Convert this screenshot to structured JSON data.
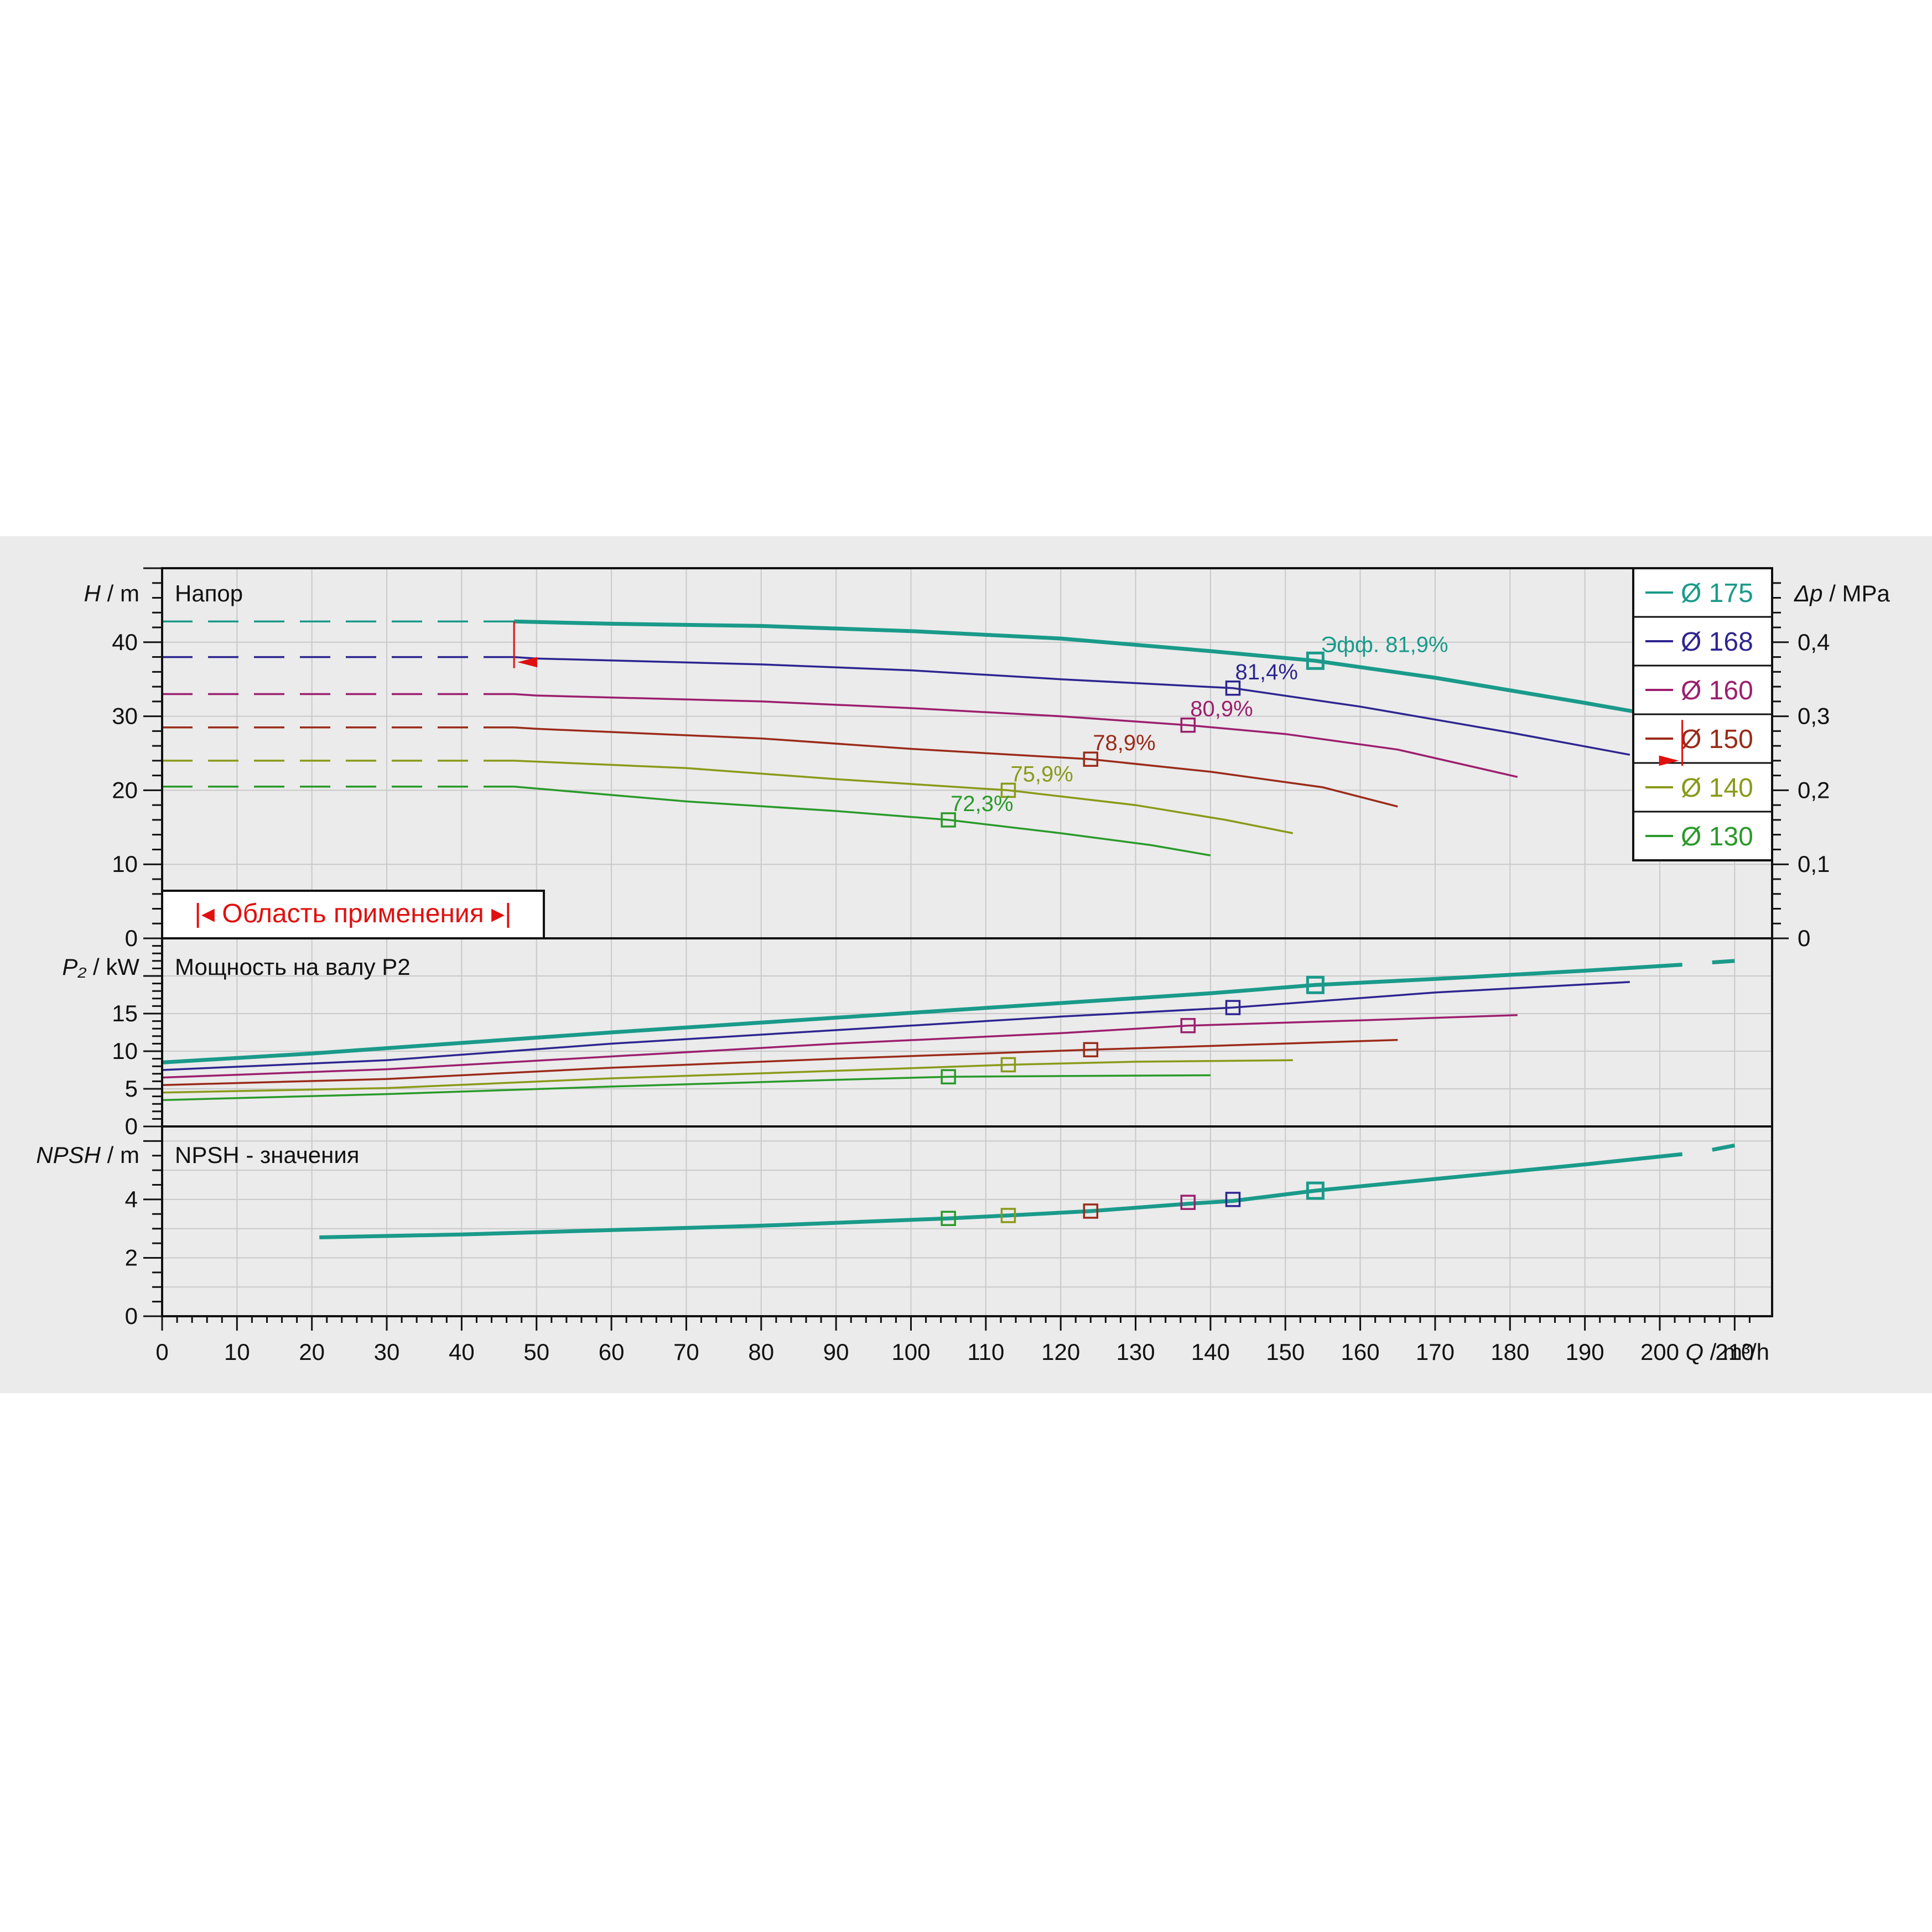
{
  "chart_data": {
    "type": "line",
    "x_axis": {
      "label_symbol": "Q",
      "label_unit": "m³/h",
      "range": [
        0,
        215
      ],
      "ticks": [
        "0",
        "10",
        "20",
        "30",
        "40",
        "50",
        "60",
        "70",
        "80",
        "90",
        "100",
        "110",
        "120",
        "130",
        "140",
        "150",
        "160",
        "170",
        "180",
        "190",
        "200",
        "210"
      ]
    },
    "panels": {
      "head": {
        "title": "Напор",
        "ylabel_symbol": "H",
        "ylabel_unit": "m",
        "ylim": [
          0,
          50
        ],
        "yticks": [
          "0",
          "10",
          "20",
          "30",
          "40"
        ],
        "right_axis": {
          "label_symbol": "Δp",
          "label_unit": "MPa",
          "ticks": [
            "0",
            "0,1",
            "0,2",
            "0,3",
            "0,4"
          ]
        },
        "application_range": {
          "label": "Область применения",
          "q_min": 47,
          "q_max": 203
        }
      },
      "power": {
        "title": "Мощность на валу P2",
        "ylabel_symbol": "P₂",
        "ylabel_unit": "kW",
        "ylim": [
          0,
          25
        ],
        "yticks": [
          "0",
          "5",
          "10",
          "15"
        ]
      },
      "npsh": {
        "title": "NPSH - значения",
        "ylabel_symbol": "NPSH",
        "ylabel_unit": "m",
        "ylim": [
          0,
          6.5
        ],
        "yticks": [
          "0",
          "2",
          "4"
        ]
      }
    },
    "efficiency_prefix": "Эфф.",
    "series": [
      {
        "name": "Ø 175",
        "color": "#1a9a8a",
        "bold": true,
        "head": [
          [
            47,
            42.8
          ],
          [
            60,
            42.5
          ],
          [
            80,
            42.2
          ],
          [
            100,
            41.5
          ],
          [
            120,
            40.5
          ],
          [
            140,
            38.8
          ],
          [
            154,
            37.5
          ],
          [
            170,
            35.2
          ],
          [
            190,
            31.8
          ],
          [
            203,
            29.5
          ]
        ],
        "head_ext": [
          [
            207,
            28.5
          ],
          [
            210,
            27.8
          ]
        ],
        "head_dash": [
          [
            0,
            42.8
          ],
          [
            47,
            42.8
          ]
        ],
        "power": [
          [
            0,
            8.5
          ],
          [
            20,
            9.7
          ],
          [
            40,
            11.1
          ],
          [
            60,
            12.5
          ],
          [
            80,
            13.8
          ],
          [
            100,
            15.1
          ],
          [
            120,
            16.4
          ],
          [
            140,
            17.7
          ],
          [
            154,
            18.8
          ],
          [
            170,
            19.6
          ],
          [
            190,
            20.7
          ],
          [
            203,
            21.5
          ]
        ],
        "power_ext": [
          [
            207,
            21.8
          ],
          [
            210,
            22.0
          ]
        ],
        "npsh": [
          [
            21,
            2.7
          ],
          [
            40,
            2.8
          ],
          [
            60,
            2.95
          ],
          [
            80,
            3.1
          ],
          [
            105,
            3.35
          ],
          [
            113,
            3.45
          ],
          [
            124,
            3.6
          ],
          [
            137,
            3.85
          ],
          [
            143,
            3.95
          ],
          [
            154,
            4.3
          ],
          [
            170,
            4.7
          ],
          [
            190,
            5.2
          ],
          [
            203,
            5.55
          ]
        ],
        "npsh_ext": [
          [
            207,
            5.7
          ],
          [
            210,
            5.85
          ]
        ],
        "bep": {
          "q": 154,
          "h": 37.5,
          "p": 18.8,
          "npsh": 4.3,
          "label": "81,9%"
        }
      },
      {
        "name": "Ø 168",
        "color": "#2e2590",
        "head": [
          [
            0,
            38
          ],
          [
            50,
            37.8
          ],
          [
            80,
            37
          ],
          [
            100,
            36.2
          ],
          [
            120,
            35
          ],
          [
            143,
            33.8
          ],
          [
            160,
            31.3
          ],
          [
            180,
            27.8
          ],
          [
            196,
            24.8
          ]
        ],
        "power": [
          [
            0,
            7.5
          ],
          [
            30,
            8.8
          ],
          [
            60,
            11
          ],
          [
            90,
            12.8
          ],
          [
            120,
            14.6
          ],
          [
            143,
            15.8
          ],
          [
            170,
            17.8
          ],
          [
            196,
            19.2
          ]
        ],
        "bep": {
          "q": 143,
          "h": 33.8,
          "p": 15.8,
          "npsh": 4.0,
          "label": "81,4%"
        }
      },
      {
        "name": "Ø 160",
        "color": "#9b1f6e",
        "head": [
          [
            0,
            33
          ],
          [
            50,
            32.8
          ],
          [
            80,
            32
          ],
          [
            100,
            31.1
          ],
          [
            120,
            30
          ],
          [
            137,
            28.8
          ],
          [
            150,
            27.6
          ],
          [
            165,
            25.5
          ],
          [
            181,
            21.8
          ]
        ],
        "power": [
          [
            0,
            6.5
          ],
          [
            30,
            7.6
          ],
          [
            60,
            9.3
          ],
          [
            90,
            11
          ],
          [
            120,
            12.4
          ],
          [
            137,
            13.4
          ],
          [
            160,
            14.1
          ],
          [
            181,
            14.8
          ]
        ],
        "bep": {
          "q": 137,
          "h": 28.8,
          "p": 13.4,
          "npsh": 3.9,
          "label": "80,9%"
        }
      },
      {
        "name": "Ø 150",
        "color": "#9a2b1a",
        "head": [
          [
            0,
            28.5
          ],
          [
            50,
            28.3
          ],
          [
            80,
            27
          ],
          [
            100,
            25.6
          ],
          [
            124,
            24.2
          ],
          [
            140,
            22.5
          ],
          [
            155,
            20.4
          ],
          [
            165,
            17.8
          ]
        ],
        "power": [
          [
            0,
            5.5
          ],
          [
            30,
            6.3
          ],
          [
            60,
            7.8
          ],
          [
            90,
            9
          ],
          [
            124,
            10.2
          ],
          [
            140,
            10.7
          ],
          [
            165,
            11.5
          ]
        ],
        "bep": {
          "q": 124,
          "h": 24.2,
          "p": 10.2,
          "npsh": 3.6,
          "label": "78,9%"
        }
      },
      {
        "name": "Ø 140",
        "color": "#8a9a1a",
        "head": [
          [
            0,
            24
          ],
          [
            40,
            23.8
          ],
          [
            70,
            23
          ],
          [
            90,
            21.5
          ],
          [
            113,
            20
          ],
          [
            130,
            18
          ],
          [
            142,
            16
          ],
          [
            151,
            14.2
          ]
        ],
        "power": [
          [
            0,
            4.5
          ],
          [
            30,
            5.1
          ],
          [
            60,
            6.4
          ],
          [
            90,
            7.4
          ],
          [
            113,
            8.2
          ],
          [
            130,
            8.6
          ],
          [
            151,
            8.8
          ]
        ],
        "bep": {
          "q": 113,
          "h": 20,
          "p": 8.2,
          "npsh": 3.45,
          "label": "75,9%"
        }
      },
      {
        "name": "Ø 130",
        "color": "#2a9a2a",
        "head": [
          [
            0,
            20.5
          ],
          [
            40,
            20
          ],
          [
            70,
            18.5
          ],
          [
            90,
            17.2
          ],
          [
            105,
            16
          ],
          [
            120,
            14.2
          ],
          [
            132,
            12.6
          ],
          [
            140,
            11.2
          ]
        ],
        "power": [
          [
            0,
            3.5
          ],
          [
            30,
            4.3
          ],
          [
            60,
            5.3
          ],
          [
            90,
            6.2
          ],
          [
            105,
            6.6
          ],
          [
            120,
            6.7
          ],
          [
            140,
            6.8
          ]
        ],
        "bep": {
          "q": 105,
          "h": 16,
          "p": 6.6,
          "npsh": 3.35,
          "label": "72,3%"
        }
      }
    ]
  }
}
